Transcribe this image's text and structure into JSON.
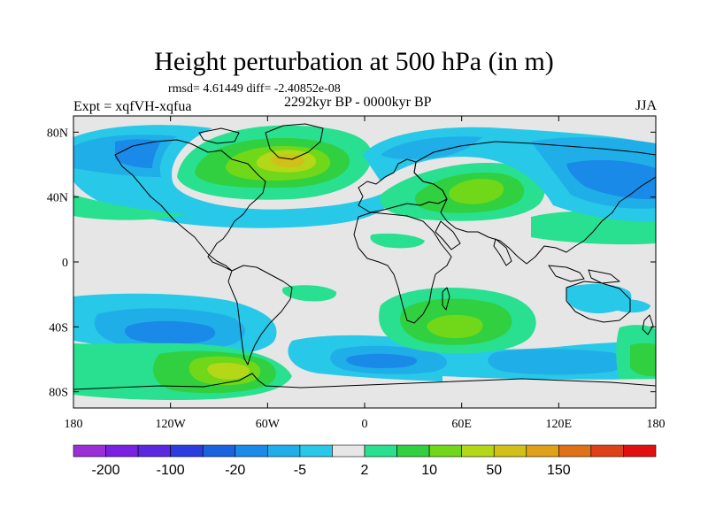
{
  "header": {
    "title": "Height perturbation at 500 hPa (in m)",
    "stats": "rmsd= 4.61449 diff= -2.40852e-08",
    "experiment": "Expt = xqfVH-xqfua",
    "period": "2292kyr BP - 0000kyr BP",
    "season": "JJA"
  },
  "axes": {
    "lon_ticks": [
      {
        "value": -180,
        "label": "180"
      },
      {
        "value": -120,
        "label": "120W"
      },
      {
        "value": -60,
        "label": "60W"
      },
      {
        "value": 0,
        "label": "0"
      },
      {
        "value": 60,
        "label": "60E"
      },
      {
        "value": 120,
        "label": "120E"
      },
      {
        "value": 180,
        "label": "180"
      }
    ],
    "lat_ticks": [
      {
        "value": 80,
        "label": "80N"
      },
      {
        "value": 40,
        "label": "40N"
      },
      {
        "value": 0,
        "label": "0"
      },
      {
        "value": -40,
        "label": "40S"
      },
      {
        "value": -80,
        "label": "80S"
      }
    ],
    "lon_range": [
      -180,
      180
    ],
    "lat_range": [
      -90,
      90
    ]
  },
  "colorbar": {
    "colors": [
      "#9a2fd8",
      "#7a20e0",
      "#5a28e0",
      "#2c3ce0",
      "#1a62e0",
      "#1a8ae8",
      "#20aee8",
      "#28c8e8",
      "#e6e6e6",
      "#28e090",
      "#30d040",
      "#70d818",
      "#b4d818",
      "#d0c018",
      "#e0a018",
      "#e07018",
      "#e04018",
      "#e01010"
    ],
    "labels": [
      {
        "after_index": 0,
        "text": "-200"
      },
      {
        "after_index": 2,
        "text": "-100"
      },
      {
        "after_index": 4,
        "text": "-20"
      },
      {
        "after_index": 6,
        "text": "-5"
      },
      {
        "after_index": 8,
        "text": "2"
      },
      {
        "after_index": 10,
        "text": "10"
      },
      {
        "after_index": 12,
        "text": "50"
      },
      {
        "after_index": 14,
        "text": "150"
      }
    ]
  }
}
